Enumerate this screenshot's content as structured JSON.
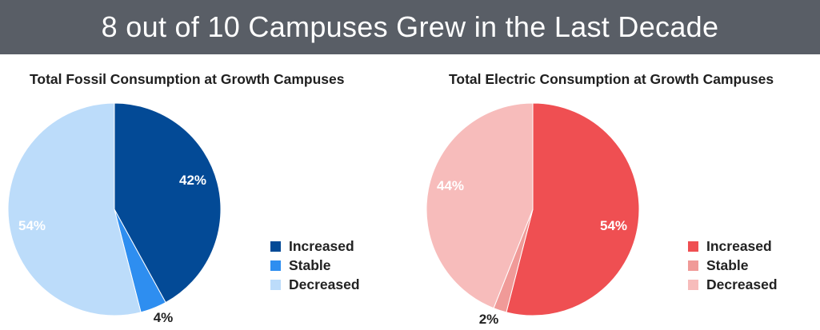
{
  "header": {
    "title": "8 out of 10 Campuses Grew in the Last Decade"
  },
  "chart_data": [
    {
      "type": "pie",
      "title": "Total Fossil Consumption at Growth Campuses",
      "categories": [
        "Increased",
        "Stable",
        "Decreased"
      ],
      "values": [
        42,
        4,
        54
      ],
      "labels": [
        "42%",
        "4%",
        "54%"
      ],
      "colors": [
        "#034a96",
        "#2e8ef0",
        "#bcdcfa"
      ],
      "label_colors": [
        "#ffffff",
        "#222222",
        "#ffffff"
      ],
      "legend": {
        "position": "right",
        "items": [
          "Increased",
          "Stable",
          "Decreased"
        ]
      }
    },
    {
      "type": "pie",
      "title": "Total Electric Consumption at Growth Campuses",
      "categories": [
        "Increased",
        "Stable",
        "Decreased"
      ],
      "values": [
        54,
        2,
        44
      ],
      "labels": [
        "54%",
        "2%",
        "44%"
      ],
      "colors": [
        "#ef4f52",
        "#f09a98",
        "#f7bcbb"
      ],
      "label_colors": [
        "#ffffff",
        "#222222",
        "#ffffff"
      ],
      "legend": {
        "position": "right",
        "items": [
          "Increased",
          "Stable",
          "Decreased"
        ]
      }
    }
  ]
}
